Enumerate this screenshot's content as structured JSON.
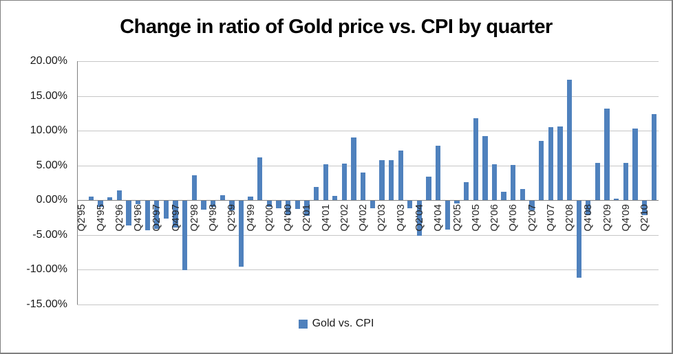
{
  "chart_data": {
    "type": "bar",
    "title": "Change in ratio of Gold price vs. CPI by quarter",
    "series_name": "Gold vs. CPI",
    "categories": [
      "Q2'95",
      "Q3'95",
      "Q4'95",
      "Q1'96",
      "Q2'96",
      "Q3'96",
      "Q4'96",
      "Q1'97",
      "Q2'97",
      "Q3'97",
      "Q4'97",
      "Q1'98",
      "Q2'98",
      "Q3'98",
      "Q4'98",
      "Q1'99",
      "Q2'99",
      "Q3'99",
      "Q4'99",
      "Q1'00",
      "Q2'00",
      "Q3'00",
      "Q4'00",
      "Q1'01",
      "Q2'01",
      "Q3'01",
      "Q4'01",
      "Q1'02",
      "Q2'02",
      "Q3'02",
      "Q4'02",
      "Q1'03",
      "Q2'03",
      "Q3'03",
      "Q4'03",
      "Q1'04",
      "Q2'04",
      "Q3'04",
      "Q4'04",
      "Q1'05",
      "Q2'05",
      "Q3'05",
      "Q4'05",
      "Q1'06",
      "Q2'06",
      "Q3'06",
      "Q4'06",
      "Q1'07",
      "Q2'07",
      "Q3'07",
      "Q4'07",
      "Q1'08",
      "Q2'08",
      "Q3'08",
      "Q4'08",
      "Q1'09",
      "Q2'09",
      "Q3'09",
      "Q4'09",
      "Q1'10",
      "Q2'10",
      "Q3'10"
    ],
    "values": [
      0.0,
      0.5,
      -1.0,
      0.4,
      1.4,
      -3.7,
      -0.6,
      -4.4,
      -4.2,
      -2.7,
      -4.0,
      -10.1,
      3.6,
      -1.4,
      -1.0,
      0.7,
      -1.5,
      -9.6,
      0.5,
      6.1,
      -1.0,
      -1.2,
      -2.2,
      -1.3,
      -2.3,
      1.9,
      5.2,
      0.6,
      5.3,
      9.0,
      4.0,
      -1.2,
      5.7,
      5.7,
      7.1,
      -1.2,
      -5.1,
      3.4,
      7.8,
      -4.3,
      -0.5,
      2.6,
      11.8,
      9.2,
      5.2,
      1.2,
      5.1,
      1.6,
      -1.5,
      8.5,
      10.5,
      10.6,
      17.3,
      -11.2,
      -2.2,
      5.4,
      13.2,
      0.2,
      5.4,
      10.3,
      -2.2,
      12.4
    ],
    "x_label_interval": 2,
    "x_labels_shown": [
      "Q2'95",
      "Q4'95",
      "Q2'96",
      "Q4'96",
      "Q2'97",
      "Q4'97",
      "Q2'98",
      "Q4'98",
      "Q2'99",
      "Q4'99",
      "Q2'00",
      "Q4'00",
      "Q2'01",
      "Q4'01",
      "Q2'02",
      "Q4'02",
      "Q2'03",
      "Q4'03",
      "Q2'04",
      "Q4'04",
      "Q2'05",
      "Q4'05",
      "Q2'06",
      "Q4'06",
      "Q2'07",
      "Q4'07",
      "Q2'08",
      "Q4'08",
      "Q2'09",
      "Q4'09",
      "Q2'10"
    ],
    "y_tick_labels": [
      "20.00%",
      "15.00%",
      "10.00%",
      "5.00%",
      "0.00%",
      "-5.00%",
      "-10.00%",
      "-15.00%"
    ],
    "y_tick_values": [
      20,
      15,
      10,
      5,
      0,
      -5,
      -10,
      -15
    ],
    "ylim": [
      -15,
      20
    ],
    "xlabel": "",
    "ylabel": "",
    "grid": "horizontal",
    "legend_position": "bottom",
    "bar_color": "#4f81bd",
    "gridline_color": "#c6c6c6",
    "axis_color": "#808080",
    "border_color": "#808080",
    "text_color": "#1a1a1a"
  }
}
